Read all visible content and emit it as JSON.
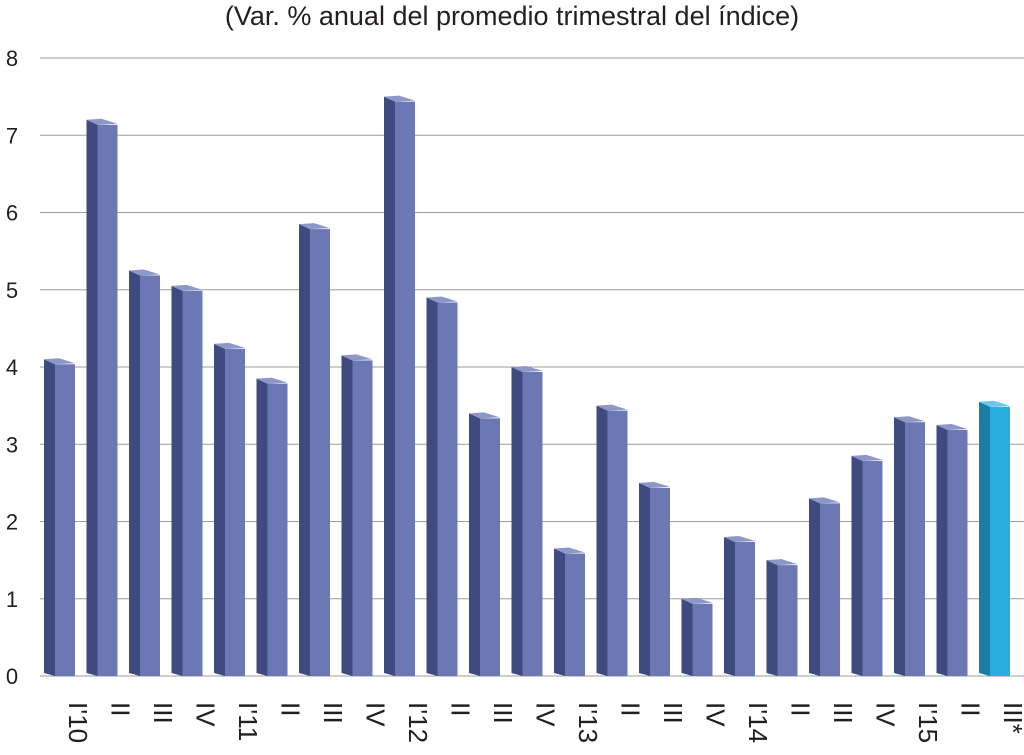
{
  "chart_data": {
    "type": "bar",
    "subtitle": "(Var. % anual del promedio trimestral del índice)",
    "categories": [
      "I'10",
      "II",
      "III",
      "IV",
      "I'11",
      "II",
      "III",
      "IV",
      "I'12",
      "II",
      "III",
      "IV",
      "I'13",
      "II",
      "III",
      "IV",
      "I'14",
      "II",
      "III",
      "IV",
      "I'15",
      "II",
      "III*"
    ],
    "values": [
      4.1,
      7.2,
      5.25,
      5.05,
      4.3,
      3.85,
      5.85,
      4.15,
      7.5,
      4.9,
      3.4,
      4.0,
      1.65,
      3.5,
      2.5,
      1.0,
      1.8,
      1.5,
      2.3,
      2.85,
      3.35,
      3.25,
      3.55
    ],
    "highlight_index": 22,
    "colors": {
      "bar": "#6b78b4",
      "bar_side": "#3f4a7e",
      "bar_top": "#8c97c8",
      "highlight": "#29aee0",
      "highlight_side": "#1a7da8",
      "highlight_top": "#6cc8ea",
      "grid": "#9b9b9b"
    },
    "ylim": [
      0,
      8
    ],
    "yticks": [
      0,
      1,
      2,
      3,
      4,
      5,
      6,
      7,
      8
    ],
    "grid": true,
    "xlabel": "",
    "ylabel": ""
  }
}
